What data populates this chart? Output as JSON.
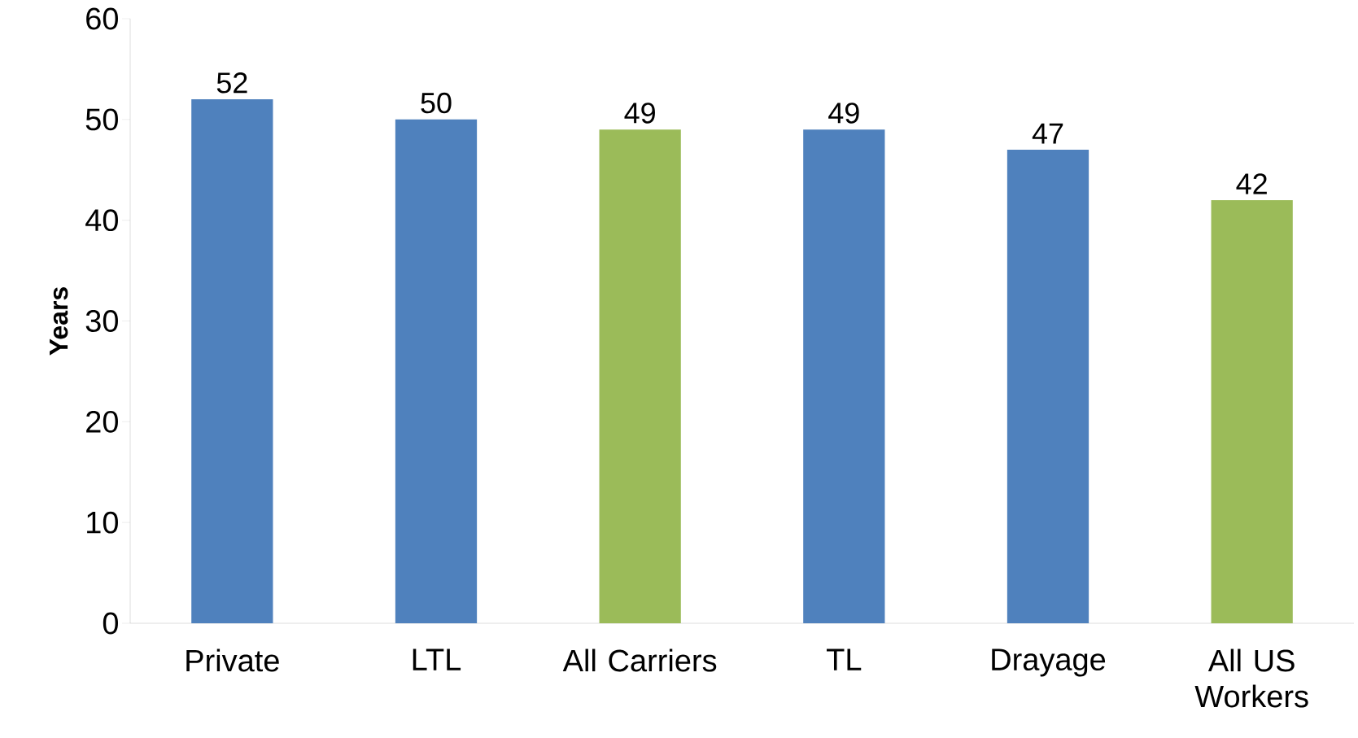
{
  "chart_data": {
    "type": "bar",
    "ylabel": "Years",
    "categories": [
      "Private",
      "LTL",
      "All Carriers",
      "TL",
      "Drayage",
      "All US Workers"
    ],
    "values": [
      52,
      50,
      49,
      49,
      47,
      42
    ],
    "colors": [
      "#4f81bd",
      "#4f81bd",
      "#9bbb59",
      "#4f81bd",
      "#4f81bd",
      "#9bbb59"
    ],
    "ylim": [
      0,
      60
    ],
    "yticks": [
      0,
      10,
      20,
      30,
      40,
      50,
      60
    ],
    "data_labels": true,
    "grid": false
  }
}
